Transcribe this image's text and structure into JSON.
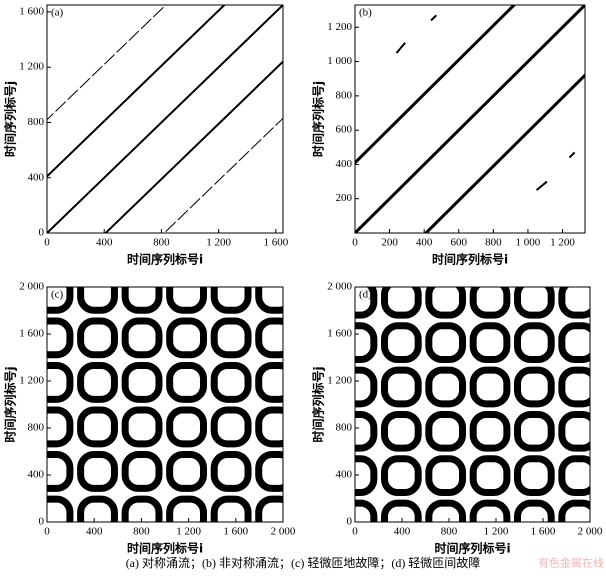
{
  "chart_data": [
    {
      "type": "recurrence-plot",
      "panel": "(a)",
      "xlabel": "时间序列标号i",
      "ylabel": "时间序列标号j",
      "xlim": [
        0,
        1650
      ],
      "ylim": [
        0,
        1650
      ],
      "xticks": [
        0,
        400,
        800,
        {
          "value": 1200,
          "label": "1 200"
        },
        {
          "value": 1600,
          "label": "1 600"
        }
      ],
      "yticks": [
        0,
        400,
        800,
        {
          "value": 1200,
          "label": "1 200"
        },
        {
          "value": 1600,
          "label": "1 600"
        }
      ]
    },
    {
      "type": "recurrence-plot",
      "panel": "(b)",
      "xlabel": "时间序列标号i",
      "ylabel": "时间序列标号j",
      "xlim": [
        0,
        1330
      ],
      "ylim": [
        0,
        1330
      ],
      "xticks": [
        0,
        200,
        400,
        600,
        800,
        {
          "value": 1000,
          "label": "1 000"
        },
        {
          "value": 1200,
          "label": "1 200"
        }
      ],
      "yticks": [
        200,
        400,
        600,
        800,
        {
          "value": 1000,
          "label": "1 000"
        },
        {
          "value": 1200,
          "label": "1 200"
        }
      ]
    },
    {
      "type": "recurrence-plot",
      "panel": "(c)",
      "xlabel": "时间序列标号i",
      "ylabel": "时间序列标号j",
      "xlim": [
        0,
        2000
      ],
      "ylim": [
        0,
        2000
      ],
      "xticks": [
        0,
        400,
        800,
        {
          "value": 1200,
          "label": "1 200"
        },
        {
          "value": 1600,
          "label": "1 600"
        },
        {
          "value": 2000,
          "label": "2 000"
        }
      ],
      "yticks": [
        0,
        400,
        800,
        {
          "value": 1200,
          "label": "1 200"
        },
        {
          "value": 1600,
          "label": "1 600"
        },
        {
          "value": 2000,
          "label": "2 000"
        }
      ]
    },
    {
      "type": "recurrence-plot",
      "panel": "(d)",
      "xlabel": "时间序列标号i",
      "ylabel": "时间序列标号j",
      "xlim": [
        0,
        2000
      ],
      "ylim": [
        0,
        2000
      ],
      "xticks": [
        0,
        400,
        800,
        {
          "value": 1200,
          "label": "1 200"
        },
        {
          "value": 1600,
          "label": "1 600"
        },
        {
          "value": 2000,
          "label": "2 000"
        }
      ],
      "yticks": [
        0,
        400,
        800,
        {
          "value": 1200,
          "label": "1 200"
        },
        {
          "value": 1600,
          "label": "1 600"
        },
        {
          "value": 2000,
          "label": "2 000"
        }
      ]
    }
  ],
  "caption": "(a) 对称涌流；(b) 非对称涌流；(c) 轻微匝地故障；(d) 轻微匝间故障",
  "watermark": "有色金属在线"
}
